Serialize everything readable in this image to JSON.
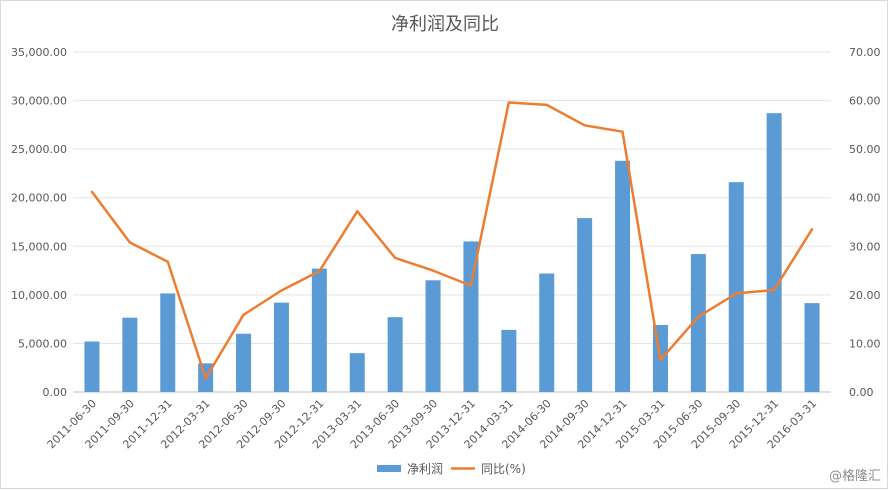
{
  "chart_data": {
    "type": "bar",
    "title": "净利润及同比",
    "categories": [
      "2011-06-30",
      "2011-09-30",
      "2011-12-31",
      "2012-03-31",
      "2012-06-30",
      "2012-09-30",
      "2012-12-31",
      "2013-03-31",
      "2013-06-30",
      "2013-09-30",
      "2013-12-31",
      "2014-03-31",
      "2014-06-30",
      "2014-09-30",
      "2014-12-31",
      "2015-03-31",
      "2015-06-30",
      "2015-09-30",
      "2015-12-31",
      "2016-03-31"
    ],
    "series": [
      {
        "name": "净利润",
        "type": "bar",
        "axis": "left",
        "color": "#5b9bd5",
        "values": [
          5200,
          7650,
          10150,
          2950,
          6000,
          9200,
          12700,
          4000,
          7700,
          11500,
          15500,
          6400,
          12200,
          17900,
          23800,
          6900,
          14200,
          21600,
          28700,
          9150
        ]
      },
      {
        "name": "同比(%)",
        "type": "line",
        "axis": "right",
        "color": "#ed7d31",
        "values": [
          41.2,
          30.8,
          26.8,
          2.8,
          15.9,
          20.9,
          24.9,
          37.2,
          27.6,
          25.0,
          21.9,
          59.6,
          59.1,
          54.9,
          53.6,
          6.6,
          15.5,
          20.3,
          21.0,
          33.5
        ]
      }
    ],
    "y_left": {
      "ylim": [
        0,
        35000
      ],
      "ticks": [
        "0.00",
        "5,000.00",
        "10,000.00",
        "15,000.00",
        "20,000.00",
        "25,000.00",
        "30,000.00",
        "35,000.00"
      ]
    },
    "y_right": {
      "ylim": [
        0,
        70
      ],
      "ticks": [
        "0.00",
        "10.00",
        "20.00",
        "30.00",
        "40.00",
        "50.00",
        "60.00",
        "70.00"
      ]
    },
    "grid": true,
    "legend_position": "bottom"
  },
  "watermark": "@格隆汇"
}
